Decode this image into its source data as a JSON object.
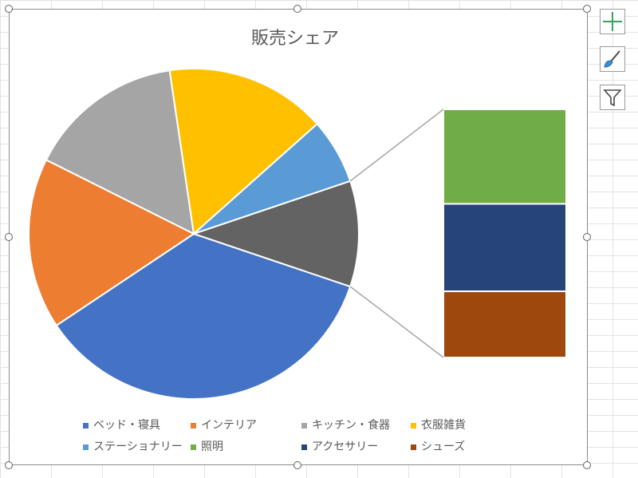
{
  "chart_data": {
    "type": "pie",
    "variant": "bar-of-pie",
    "title": "販売シェア",
    "legend_position": "bottom",
    "slices": [
      {
        "label": "ベッド・寝具",
        "value": 36.0,
        "color": "#4472C4",
        "group": "main"
      },
      {
        "label": "インテリア",
        "value": 17.0,
        "color": "#ED7D31",
        "group": "main"
      },
      {
        "label": "キッチン・食器",
        "value": 15.5,
        "color": "#A5A5A5",
        "group": "main"
      },
      {
        "label": "衣服雑貨",
        "value": 16.0,
        "color": "#FFC000",
        "group": "main"
      },
      {
        "label": "ステーショナリー",
        "value": 6.5,
        "color": "#5B9BD5",
        "group": "main"
      },
      {
        "label": "照明",
        "value": 4.0,
        "color": "#70AD47",
        "group": "other"
      },
      {
        "label": "アクセサリー",
        "value": 3.7,
        "color": "#264478",
        "group": "other"
      },
      {
        "label": "シューズ",
        "value": 2.8,
        "color": "#9E480E",
        "group": "other"
      }
    ],
    "other_slice_color": "#636363"
  },
  "toolbar": {
    "chart_elements_icon": "plus-icon",
    "chart_styles_icon": "brush-icon",
    "chart_filters_icon": "funnel-icon"
  }
}
